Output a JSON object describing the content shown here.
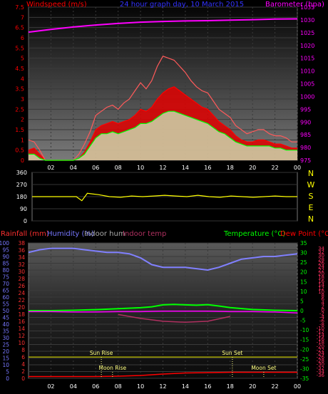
{
  "chart_data": [
    {
      "type": "line",
      "title": "24 hour graph day, 10 March 2015",
      "left_axis_label": "Windspeed (m/s)",
      "right_axis_label": "Barometer (hpa)",
      "left_ticks": [
        "0",
        "0.5",
        "1",
        "1.5",
        "2",
        "2.5",
        "3",
        "3.5",
        "4",
        "4.5",
        "5",
        "5.5",
        "6",
        "6.5",
        "7",
        "7.5"
      ],
      "left_ylim": [
        0,
        7.5
      ],
      "right_ticks": [
        "975",
        "980",
        "985",
        "990",
        "995",
        "1000",
        "1005",
        "1010",
        "1015",
        "1020",
        "1025",
        "1030",
        "1035"
      ],
      "right_ylim": [
        975,
        1035
      ],
      "x_ticks": [
        "02",
        "04",
        "06",
        "08",
        "10",
        "12",
        "14",
        "16",
        "18",
        "20",
        "22",
        "00"
      ],
      "series": [
        {
          "color": "#ff0000",
          "x": [
            0,
            0.5,
            1,
            1.5,
            2,
            2.5,
            3,
            3.5,
            4,
            4.5,
            5,
            5.5,
            6,
            6.5,
            7,
            7.5,
            8,
            8.5,
            9,
            9.5,
            10,
            10.5,
            11,
            11.5,
            12,
            12.5,
            13,
            13.5,
            14,
            14.5,
            15,
            15.5,
            16,
            16.5,
            17,
            17.5,
            18,
            18.5,
            19,
            19.5,
            20,
            20.5,
            21,
            21.5,
            22,
            22.5,
            23,
            23.5,
            24
          ],
          "y": [
            0.5,
            0.6,
            0.3,
            0,
            0,
            0,
            0,
            0,
            0,
            0.1,
            0.4,
            0.9,
            1.5,
            1.7,
            1.8,
            1.9,
            1.8,
            1.9,
            2.0,
            2.2,
            2.5,
            2.4,
            2.6,
            3.0,
            3.3,
            3.5,
            3.6,
            3.4,
            3.2,
            3.0,
            2.8,
            2.6,
            2.5,
            2.2,
            1.9,
            1.7,
            1.5,
            1.2,
            1.0,
            0.9,
            0.9,
            1.0,
            1.0,
            0.9,
            0.8,
            0.8,
            0.7,
            0.6,
            0.6
          ]
        },
        {
          "color": "#ff5a5a",
          "x": [
            0,
            0.5,
            1,
            1.5,
            2,
            2.5,
            3,
            3.5,
            4,
            4.5,
            5,
            5.5,
            6,
            6.5,
            7,
            7.5,
            8,
            8.5,
            9,
            9.5,
            10,
            10.5,
            11,
            11.5,
            12,
            12.5,
            13,
            13.5,
            14,
            14.5,
            15,
            15.5,
            16,
            16.5,
            17,
            17.5,
            18,
            18.5,
            19,
            19.5,
            20,
            20.5,
            21,
            21.5,
            22,
            22.5,
            23,
            23.5,
            24
          ],
          "y": [
            1.0,
            0.9,
            0.5,
            0,
            0,
            0,
            0,
            0,
            0,
            0.3,
            0.8,
            1.4,
            2.2,
            2.4,
            2.6,
            2.7,
            2.5,
            2.8,
            3.0,
            3.4,
            3.8,
            3.5,
            3.9,
            4.6,
            5.1,
            5.0,
            4.9,
            4.6,
            4.3,
            3.9,
            3.6,
            3.4,
            3.3,
            2.9,
            2.5,
            2.3,
            2.1,
            1.7,
            1.5,
            1.3,
            1.4,
            1.5,
            1.5,
            1.3,
            1.2,
            1.2,
            1.1,
            0.9,
            0.9
          ]
        },
        {
          "color": "#00ff00",
          "x": [
            0,
            0.5,
            1,
            1.5,
            2,
            2.5,
            3,
            3.5,
            4,
            4.5,
            5,
            5.5,
            6,
            6.5,
            7,
            7.5,
            8,
            8.5,
            9,
            9.5,
            10,
            10.5,
            11,
            11.5,
            12,
            12.5,
            13,
            13.5,
            14,
            14.5,
            15,
            15.5,
            16,
            16.5,
            17,
            17.5,
            18,
            18.5,
            19,
            19.5,
            20,
            20.5,
            21,
            21.5,
            22,
            22.5,
            23,
            23.5,
            24
          ],
          "y": [
            0.3,
            0.3,
            0.1,
            0,
            0,
            0,
            0,
            0,
            0,
            0.1,
            0.3,
            0.7,
            1.1,
            1.3,
            1.3,
            1.4,
            1.3,
            1.4,
            1.5,
            1.6,
            1.8,
            1.8,
            1.9,
            2.1,
            2.3,
            2.4,
            2.4,
            2.3,
            2.2,
            2.1,
            2.0,
            1.9,
            1.8,
            1.6,
            1.4,
            1.3,
            1.1,
            0.9,
            0.8,
            0.7,
            0.7,
            0.7,
            0.7,
            0.7,
            0.6,
            0.6,
            0.5,
            0.5,
            0.5
          ]
        },
        {
          "color": "#ff00ff",
          "x": [
            0,
            2,
            4,
            6,
            8,
            10,
            12,
            14,
            16,
            18,
            20,
            22,
            24
          ],
          "y": [
            1025.2,
            1026.3,
            1027.2,
            1028.0,
            1028.6,
            1029.1,
            1029.4,
            1029.6,
            1029.7,
            1029.9,
            1030.1,
            1030.3,
            1030.4
          ]
        }
      ]
    },
    {
      "type": "line",
      "ticks": [
        "0",
        "90",
        "180",
        "270",
        "360"
      ],
      "ylim": [
        0,
        360
      ],
      "compass": [
        "N",
        "W",
        "S",
        "E",
        "N"
      ],
      "x_ticks": [
        "02",
        "04",
        "06",
        "08",
        "10",
        "12",
        "14",
        "16",
        "18",
        "20",
        "22",
        "00"
      ],
      "series": [
        {
          "color": "#ffff00",
          "x": [
            0,
            1,
            2,
            3,
            4,
            4.5,
            5,
            6,
            7,
            8,
            9,
            10,
            11,
            12,
            13,
            14,
            15,
            16,
            17,
            18,
            19,
            20,
            21,
            22,
            23,
            24
          ],
          "y": [
            180,
            180,
            180,
            180,
            180,
            150,
            205,
            195,
            180,
            175,
            185,
            180,
            185,
            190,
            185,
            180,
            190,
            180,
            175,
            185,
            180,
            175,
            180,
            185,
            180,
            180
          ]
        }
      ]
    },
    {
      "type": "line",
      "title_labels": [
        "Rainfall (mm)",
        "Humidity (%)",
        "Indoor hum",
        "Indoor temp",
        "Temperature (°C)",
        "Dew Point (°C)"
      ],
      "humidity_ticks": [
        "0",
        "5",
        "10",
        "15",
        "20",
        "25",
        "30",
        "35",
        "40",
        "45",
        "50",
        "55",
        "60",
        "65",
        "70",
        "75",
        "80",
        "85",
        "90",
        "95",
        "100"
      ],
      "humidity_ylim": [
        0,
        100
      ],
      "rain_ticks": [
        "0",
        "2",
        "4",
        "6",
        "8",
        "10",
        "12",
        "14",
        "16",
        "18",
        "20",
        "22",
        "24",
        "26",
        "28",
        "30",
        "32",
        "34",
        "36",
        "38"
      ],
      "rain_ylim": [
        0,
        38
      ],
      "temp_ticks": [
        "-35",
        "-30",
        "-25",
        "-20",
        "-15",
        "-10",
        "-5",
        "0",
        "5",
        "10",
        "15",
        "20",
        "25",
        "30",
        "35"
      ],
      "temp_ylim": [
        -35,
        35
      ],
      "dew_ticks": [
        "-36",
        "-34",
        "-32",
        "-30",
        "-28",
        "-26",
        "-24",
        "-22",
        "-20",
        "-18",
        "-16",
        "-14",
        "-12",
        "-10",
        "-8",
        "-6",
        "-4",
        "-2",
        "0",
        "2",
        "4",
        "6",
        "8",
        "10",
        "12",
        "14",
        "16",
        "18",
        "20",
        "22",
        "24",
        "26",
        "28",
        "30",
        "32",
        "34"
      ],
      "x_ticks": [
        "02",
        "04",
        "06",
        "08",
        "10",
        "12",
        "14",
        "16",
        "18",
        "20",
        "22",
        "00"
      ],
      "annotations": [
        {
          "label": "Sun Rise",
          "x": 6.5
        },
        {
          "label": "Sun Set",
          "x": 18.2
        },
        {
          "label": "Moon Rise",
          "x": 7.5
        },
        {
          "label": "Moon Set",
          "x": 21
        }
      ],
      "series": [
        {
          "color": "#8080ff",
          "x": [
            0,
            1,
            2,
            3,
            4,
            5,
            6,
            7,
            8,
            9,
            10,
            11,
            12,
            13,
            14,
            15,
            16,
            17,
            18,
            19,
            20,
            21,
            22,
            23,
            24
          ],
          "y": [
            93,
            95,
            96,
            96,
            96,
            95,
            94,
            93,
            93,
            92,
            89,
            84,
            82,
            82,
            82,
            81,
            80,
            82,
            85,
            88,
            89,
            90,
            90,
            91,
            92
          ]
        },
        {
          "color": "#00ff00",
          "x": [
            0,
            2,
            4,
            6,
            8,
            10,
            11,
            12,
            13,
            14,
            15,
            16,
            17,
            18,
            20,
            22,
            24
          ],
          "y": [
            0,
            0,
            0.2,
            0.5,
            1,
            1.5,
            2,
            3,
            3.2,
            3,
            2.8,
            3.1,
            2.4,
            1.6,
            0.6,
            0.2,
            0
          ]
        },
        {
          "color": "#ff00ff",
          "x": [
            0,
            2,
            4,
            6,
            8,
            10,
            12,
            14,
            16,
            18,
            20,
            22,
            24
          ],
          "y": [
            -0.5,
            -0.5,
            -0.7,
            -0.7,
            -0.5,
            -0.5,
            -0.3,
            -0.3,
            -0.3,
            -0.5,
            -0.5,
            -0.7,
            -1.2
          ]
        },
        {
          "color": "#b03060",
          "x": [
            8,
            10,
            12,
            14,
            16,
            18
          ],
          "y": [
            -2,
            -4,
            -5.5,
            -6,
            -5.5,
            -3
          ]
        },
        {
          "color": "#a0a000",
          "x": [
            0,
            24
          ],
          "y": [
            -24,
            -24
          ]
        },
        {
          "color": "#ff0000",
          "x": [
            0,
            6,
            8,
            10,
            12,
            14,
            16,
            18,
            20,
            22,
            24
          ],
          "y": [
            0.5,
            0.5,
            0.6,
            0.8,
            1.2,
            1.5,
            1.6,
            1.7,
            1.7,
            1.7,
            1.7
          ]
        }
      ]
    }
  ]
}
